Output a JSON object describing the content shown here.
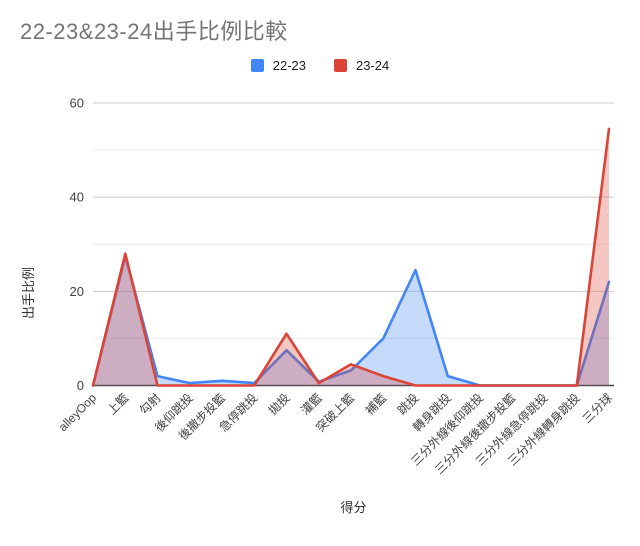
{
  "header": {
    "title": "22-23&23-24出手比例比較",
    "title_color": "#757575"
  },
  "legend": {
    "items": [
      {
        "label": "22-23",
        "color": "#4285f4"
      },
      {
        "label": "23-24",
        "color": "#db4437"
      }
    ]
  },
  "axes": {
    "tick_label_color": "#424242",
    "axis_title_color": "#333333",
    "grid_major_color": "#cccccc",
    "grid_minor_color": "#ebebeb",
    "baseline_color": "#424242"
  },
  "chart_data": {
    "type": "area",
    "title": "22-23&23-24出手比例比較",
    "xlabel": "得分",
    "ylabel": "出手比例",
    "ylim": [
      0,
      60
    ],
    "yticks_labeled": [
      0,
      20,
      40,
      60
    ],
    "grid_step": 10,
    "grid": true,
    "legend_position": "top",
    "categories": [
      "alleyOop",
      "上籃",
      "勾射",
      "後仰跳投",
      "後撤步投籃",
      "急停跳投",
      "拋投",
      "灌籃",
      "突破上籃",
      "補籃",
      "跳投",
      "轉身跳投",
      "三分外線後仰跳投",
      "三分外線後撤步投籃",
      "三分外線急停跳投",
      "三分外線轉身跳投",
      "三分球"
    ],
    "series": [
      {
        "name": "22-23",
        "color": "#4285f4",
        "fill_opacity": 0.3,
        "values": [
          0,
          27.5,
          2,
          0.5,
          1,
          0.5,
          7.5,
          0.8,
          3.2,
          10,
          24.5,
          2,
          0,
          0,
          0,
          0,
          22
        ]
      },
      {
        "name": "23-24",
        "color": "#db4437",
        "fill_opacity": 0.3,
        "values": [
          0,
          28,
          0,
          0,
          0,
          0,
          11,
          0.5,
          4.5,
          2,
          0,
          0,
          0,
          0,
          0,
          0,
          54.5
        ]
      }
    ]
  }
}
